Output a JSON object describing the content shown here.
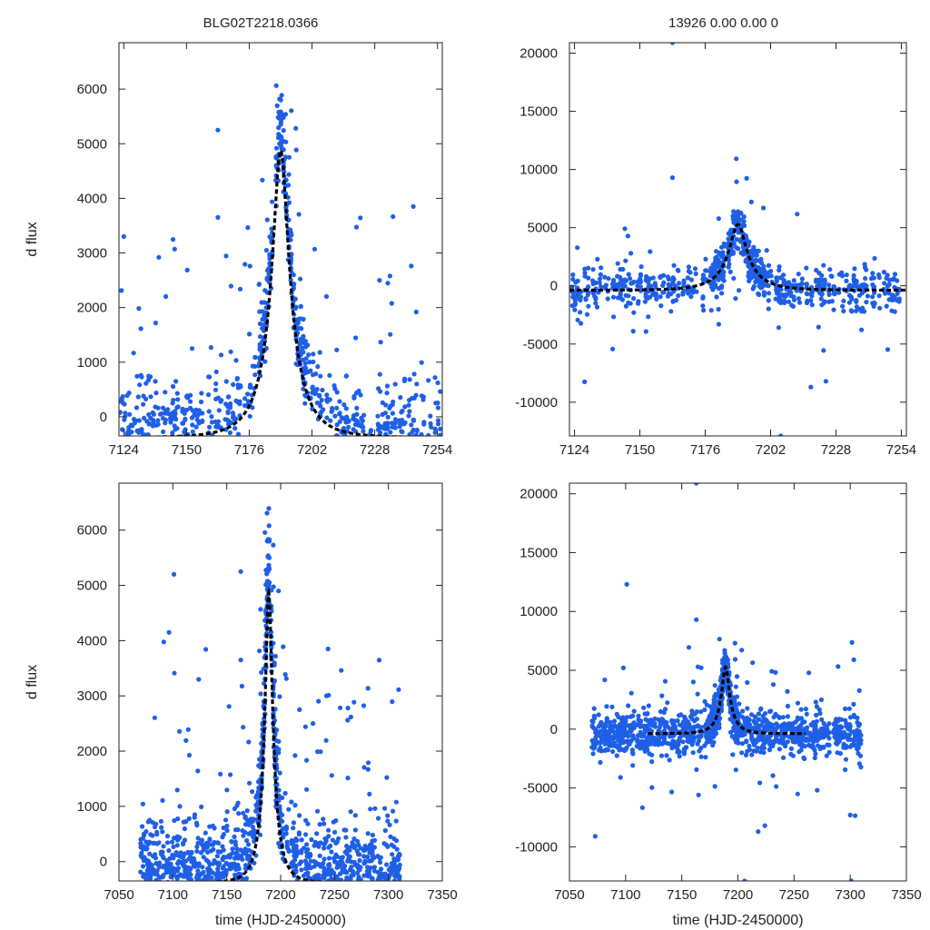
{
  "colors": {
    "points": "#1f5fe6",
    "model": "#000000",
    "axes": "#222222"
  },
  "chart_data": [
    {
      "type": "scatter",
      "title": "BLG02T2218.0366",
      "xlabel": "",
      "ylabel": "d flux",
      "xlim": [
        7122,
        7256
      ],
      "ylim": [
        -350,
        6850
      ],
      "xticks": [
        7124,
        7150,
        7176,
        7202,
        7228,
        7254
      ],
      "yticks": [
        0,
        1000,
        2000,
        3000,
        4000,
        5000,
        6000
      ],
      "series": [
        {
          "name": "observations",
          "kind": "points",
          "note": "~1600 photometric measurements, dense peak near t=7189"
        },
        {
          "name": "model",
          "kind": "dashed-line",
          "t0": 7189,
          "amplitude": 5250,
          "baseline": -380,
          "tE": 13.5,
          "u0": 0.25,
          "t_range": [
            7122,
            7256
          ]
        }
      ]
    },
    {
      "type": "scatter",
      "title": "13926  0.00  0.00  0",
      "xlabel": "",
      "ylabel": "",
      "xlim": [
        7122,
        7256
      ],
      "ylim": [
        -12900,
        20900
      ],
      "xticks": [
        7124,
        7150,
        7176,
        7202,
        7228,
        7254
      ],
      "yticks": [
        -10000,
        -5000,
        0,
        5000,
        10000,
        15000,
        20000
      ],
      "series": [
        {
          "name": "observations",
          "kind": "points",
          "note": "noisy baseline around 0 with peak ~5500 near t=7189"
        },
        {
          "name": "model",
          "kind": "dashed-line",
          "t0": 7189,
          "amplitude": 5650,
          "baseline": -380,
          "tE": 13.5,
          "u0": 0.25,
          "t_range": [
            7122,
            7256
          ]
        }
      ]
    },
    {
      "type": "scatter",
      "title": "",
      "xlabel": "time (HJD-2450000)",
      "ylabel": "d flux",
      "xlim": [
        7050,
        7350
      ],
      "ylim": [
        -350,
        6850
      ],
      "xticks": [
        7050,
        7100,
        7150,
        7200,
        7250,
        7300,
        7350
      ],
      "yticks": [
        0,
        1000,
        2000,
        3000,
        4000,
        5000,
        6000
      ],
      "series": [
        {
          "name": "observations",
          "kind": "points",
          "note": "full season 7070-7310, peak near t=7189"
        },
        {
          "name": "model",
          "kind": "dashed-line",
          "t0": 7189,
          "amplitude": 5250,
          "baseline": -380,
          "tE": 13.5,
          "u0": 0.25,
          "t_range": [
            7120,
            7260
          ]
        }
      ]
    },
    {
      "type": "scatter",
      "title": "",
      "xlabel": "time (HJD-2450000)",
      "ylabel": "",
      "xlim": [
        7050,
        7350
      ],
      "ylim": [
        -12900,
        20900
      ],
      "xticks": [
        7050,
        7100,
        7150,
        7200,
        7250,
        7300,
        7350
      ],
      "yticks": [
        -10000,
        -5000,
        0,
        5000,
        10000,
        15000,
        20000
      ],
      "series": [
        {
          "name": "observations",
          "kind": "points",
          "note": "full season, baseline ~0, peak ~6000 near t=7189"
        },
        {
          "name": "model",
          "kind": "dashed-line",
          "t0": 7189,
          "amplitude": 5650,
          "baseline": -380,
          "tE": 13.5,
          "u0": 0.25,
          "t_range": [
            7120,
            7260
          ]
        }
      ]
    }
  ]
}
